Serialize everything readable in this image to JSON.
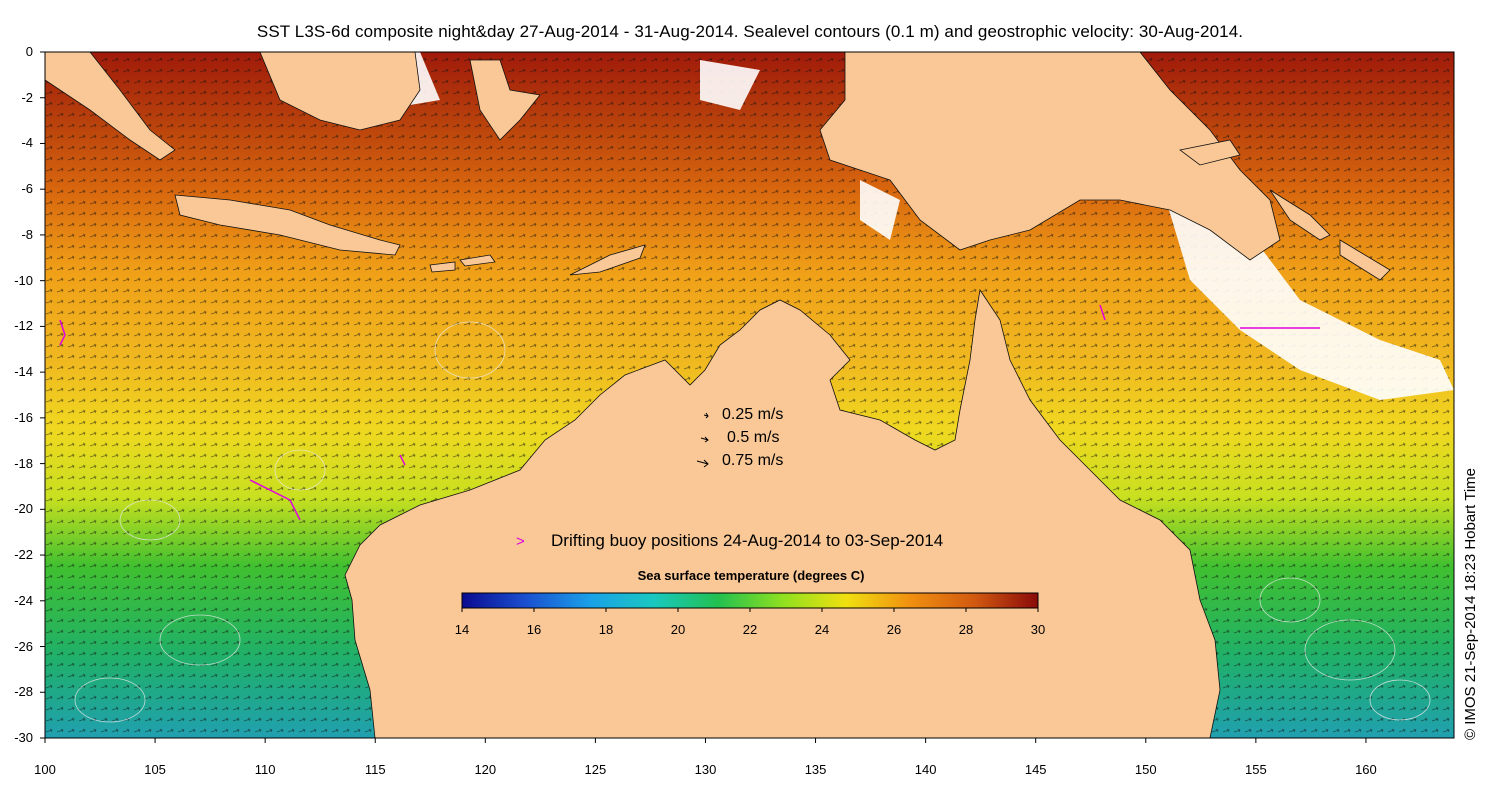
{
  "title": "SST L3S-6d composite night&day 27-Aug-2014 - 31-Aug-2014. Sealevel contours (0.1 m) and geostrophic velocity: 30-Aug-2014.",
  "axes": {
    "x_ticks": [
      "100",
      "105",
      "110",
      "115",
      "120",
      "125",
      "130",
      "135",
      "140",
      "145",
      "150",
      "155",
      "160"
    ],
    "y_ticks": [
      "0",
      "-2",
      "-4",
      "-6",
      "-8",
      "-10",
      "-12",
      "-14",
      "-16",
      "-18",
      "-20",
      "-22",
      "-24",
      "-26",
      "-28",
      "-30"
    ],
    "lon_range": [
      100,
      164
    ],
    "lat_range": [
      -30,
      0
    ]
  },
  "velocity_legend": [
    {
      "label": "0.25 m/s"
    },
    {
      "label": "0.5 m/s"
    },
    {
      "label": "0.75 m/s"
    }
  ],
  "buoy_legend": {
    "label": "Drifting buoy positions 24-Aug-2014 to 03-Sep-2014",
    "color": "#e000e0"
  },
  "colorbar": {
    "title": "Sea surface temperature (degrees C)",
    "ticks": [
      "14",
      "16",
      "18",
      "20",
      "22",
      "24",
      "26",
      "28",
      "30"
    ],
    "min": 14,
    "max": 30,
    "colors": [
      "#0a0a90",
      "#1a50d0",
      "#1aa0e8",
      "#19c8c0",
      "#22c050",
      "#8ee020",
      "#f0e010",
      "#f09010",
      "#d25a10",
      "#8a0a0a"
    ]
  },
  "land_color": "#fac896",
  "credit": "© IMOS 21-Sep-2014 18:23 Hobart Time"
}
